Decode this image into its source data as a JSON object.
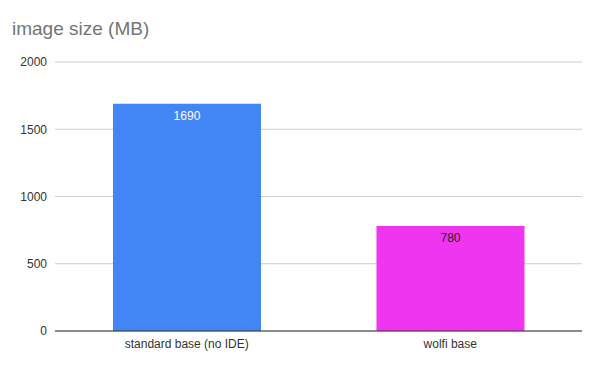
{
  "chart_data": {
    "type": "bar",
    "title": "image size (MB)",
    "categories": [
      "standard base (no IDE)",
      "wolfi base"
    ],
    "values": [
      1690,
      780
    ],
    "colors": [
      "#4285f4",
      "#f035f0"
    ],
    "ylim": [
      0,
      2000
    ],
    "yticks": [
      0,
      500,
      1000,
      1500,
      2000
    ],
    "grid": true,
    "data_labels": true
  }
}
